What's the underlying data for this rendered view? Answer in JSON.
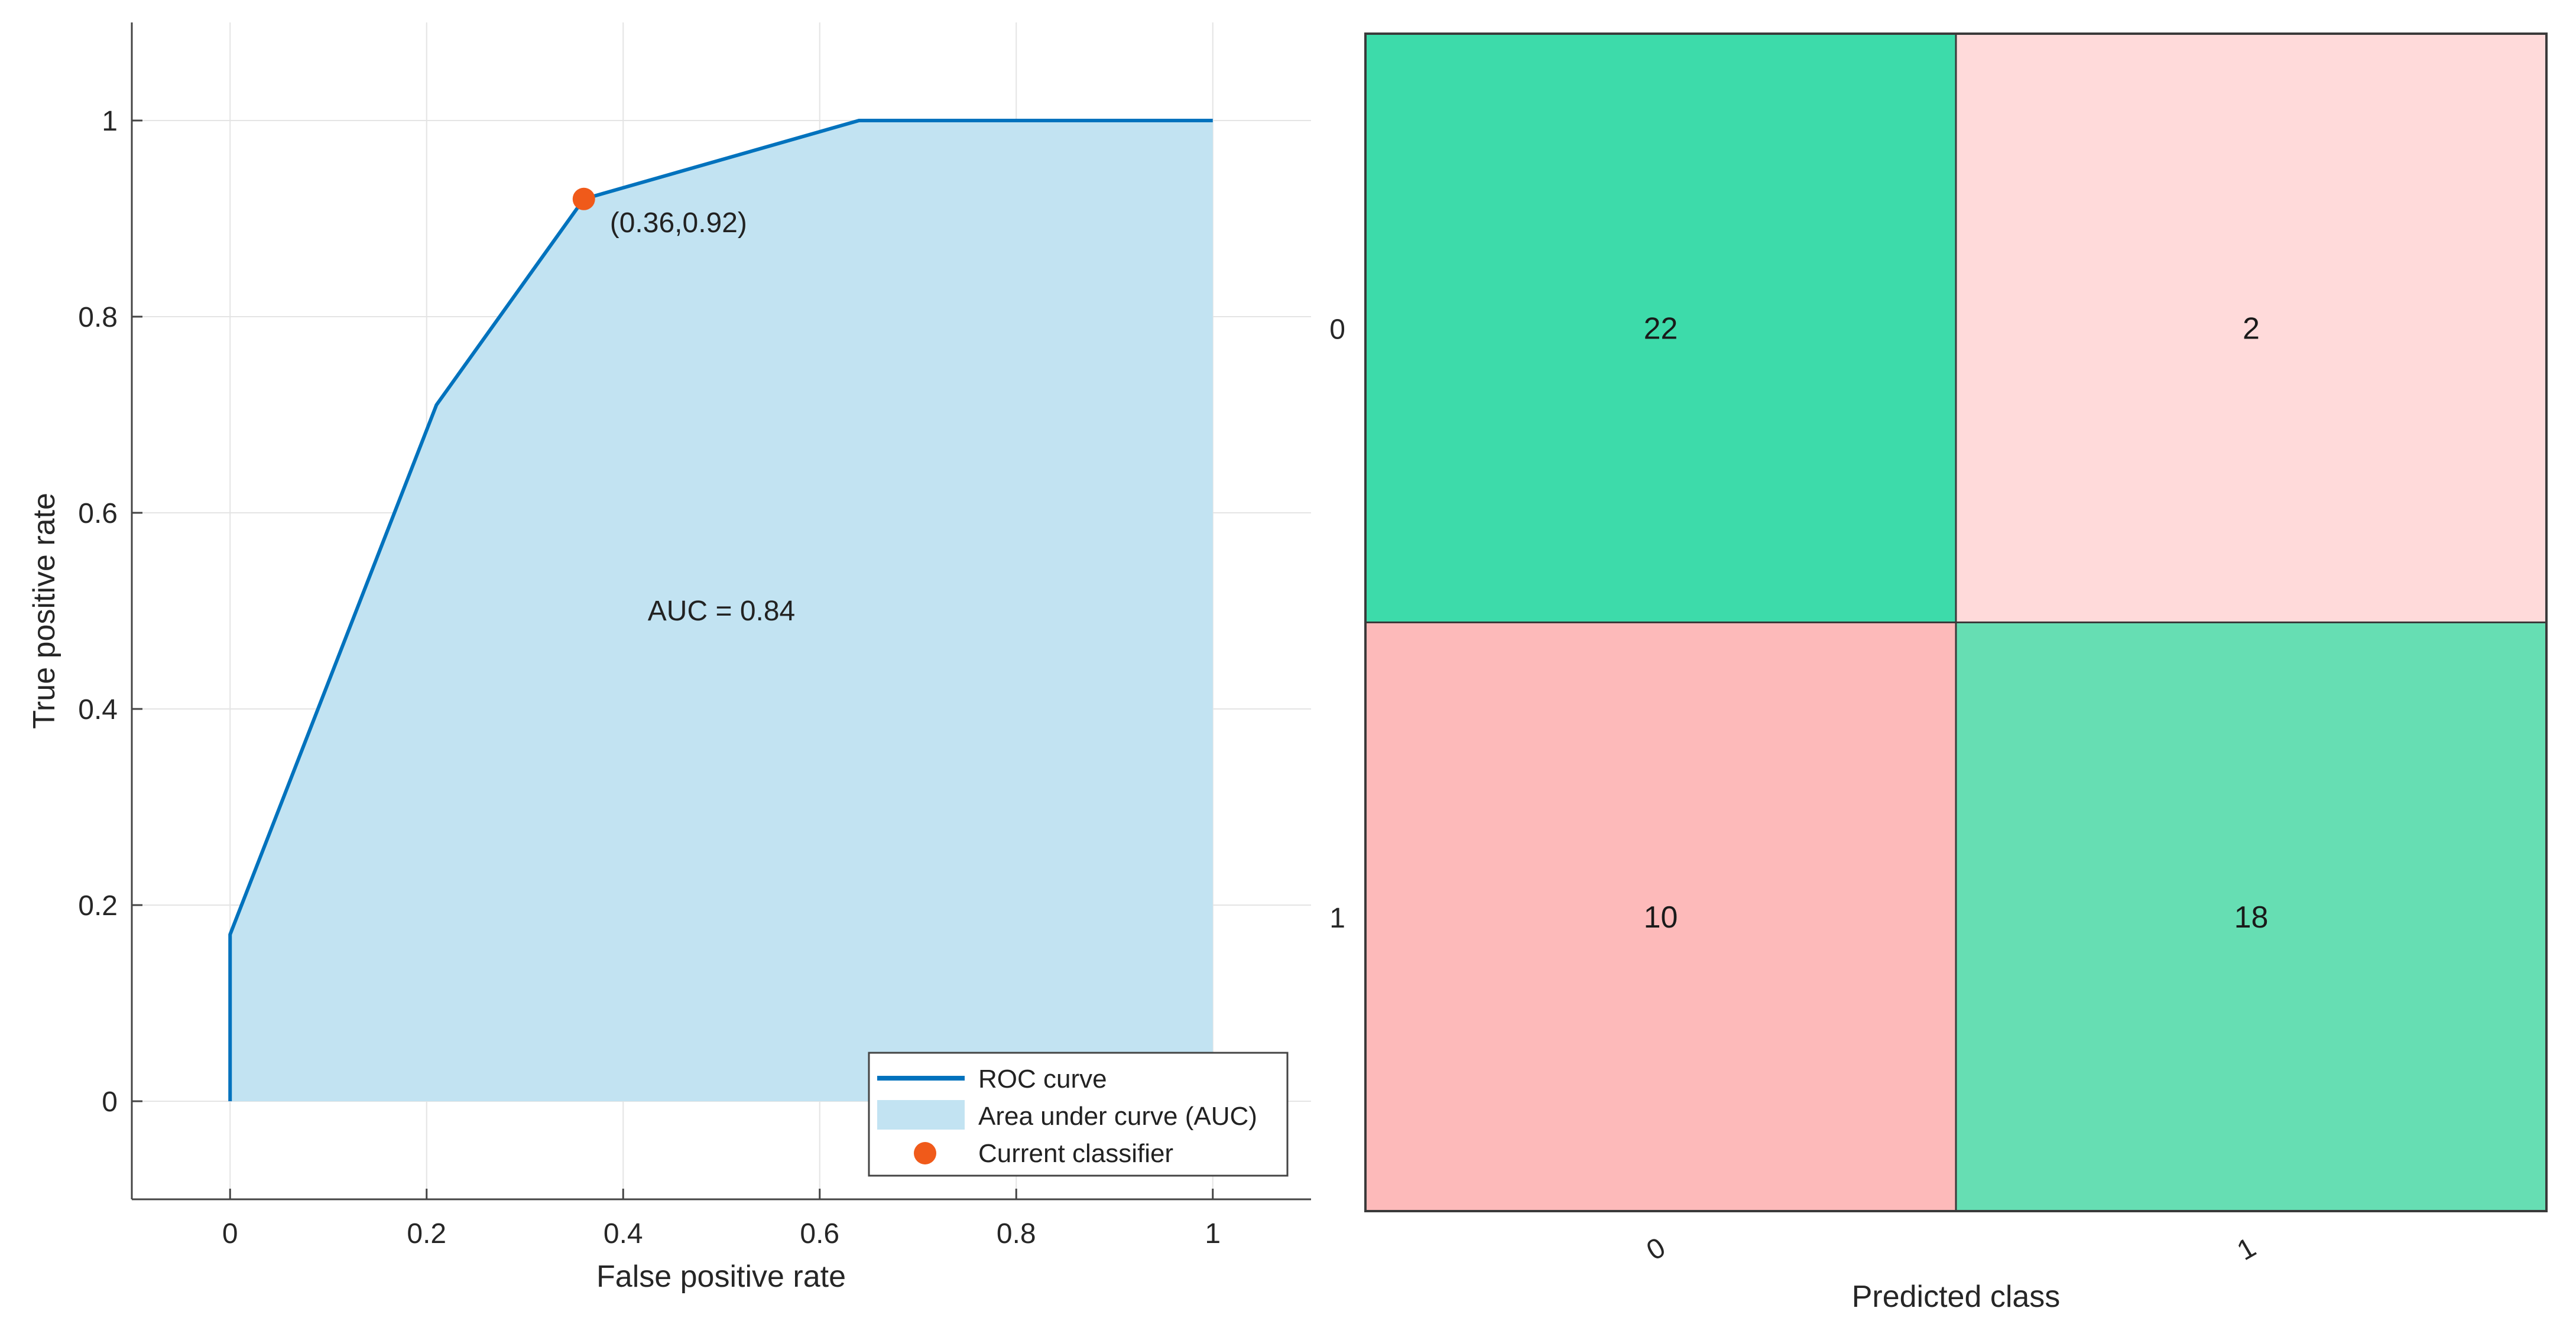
{
  "chart_data": [
    {
      "type": "area",
      "xlabel": "False positive rate",
      "ylabel": "True positive rate",
      "xlim": [
        -0.1,
        1.1
      ],
      "ylim": [
        -0.1,
        1.1
      ],
      "xticks": [
        0,
        0.2,
        0.4,
        0.6,
        0.8,
        1
      ],
      "xtick_labels": [
        "0",
        "0.2",
        "0.4",
        "0.6",
        "0.8",
        "1"
      ],
      "yticks": [
        0,
        0.2,
        0.4,
        0.6,
        0.8,
        1
      ],
      "ytick_labels": [
        "0",
        "0.2",
        "0.4",
        "0.6",
        "0.8",
        "1"
      ],
      "grid": true,
      "series": [
        {
          "name": "ROC curve",
          "x": [
            0,
            0,
            0.21,
            0.36,
            0.64,
            1
          ],
          "y": [
            0,
            0.17,
            0.71,
            0.92,
            1,
            1
          ],
          "color": "#0072BD"
        }
      ],
      "area": {
        "name": "Area under curve (AUC)",
        "color": "#C2E3F2"
      },
      "current_classifier": {
        "name": "Current classifier",
        "x": 0.36,
        "y": 0.92,
        "label": "(0.36,0.92)",
        "color": "#F05A1A"
      },
      "annotation": {
        "text": "AUC = 0.84",
        "x": 0.5,
        "y": 0.5
      },
      "legend_position": "bottom-right"
    },
    {
      "type": "heatmap",
      "xlabel": "Predicted class",
      "ylabel": "",
      "x_categories": [
        "0",
        "1"
      ],
      "y_categories": [
        "0",
        "1"
      ],
      "values": [
        [
          22,
          2
        ],
        [
          10,
          18
        ]
      ],
      "cell_colors": [
        [
          "#3DDBAA",
          "#FFDADA"
        ],
        [
          "#FDBABA",
          "#66DEB3"
        ]
      ],
      "grid": false
    }
  ]
}
